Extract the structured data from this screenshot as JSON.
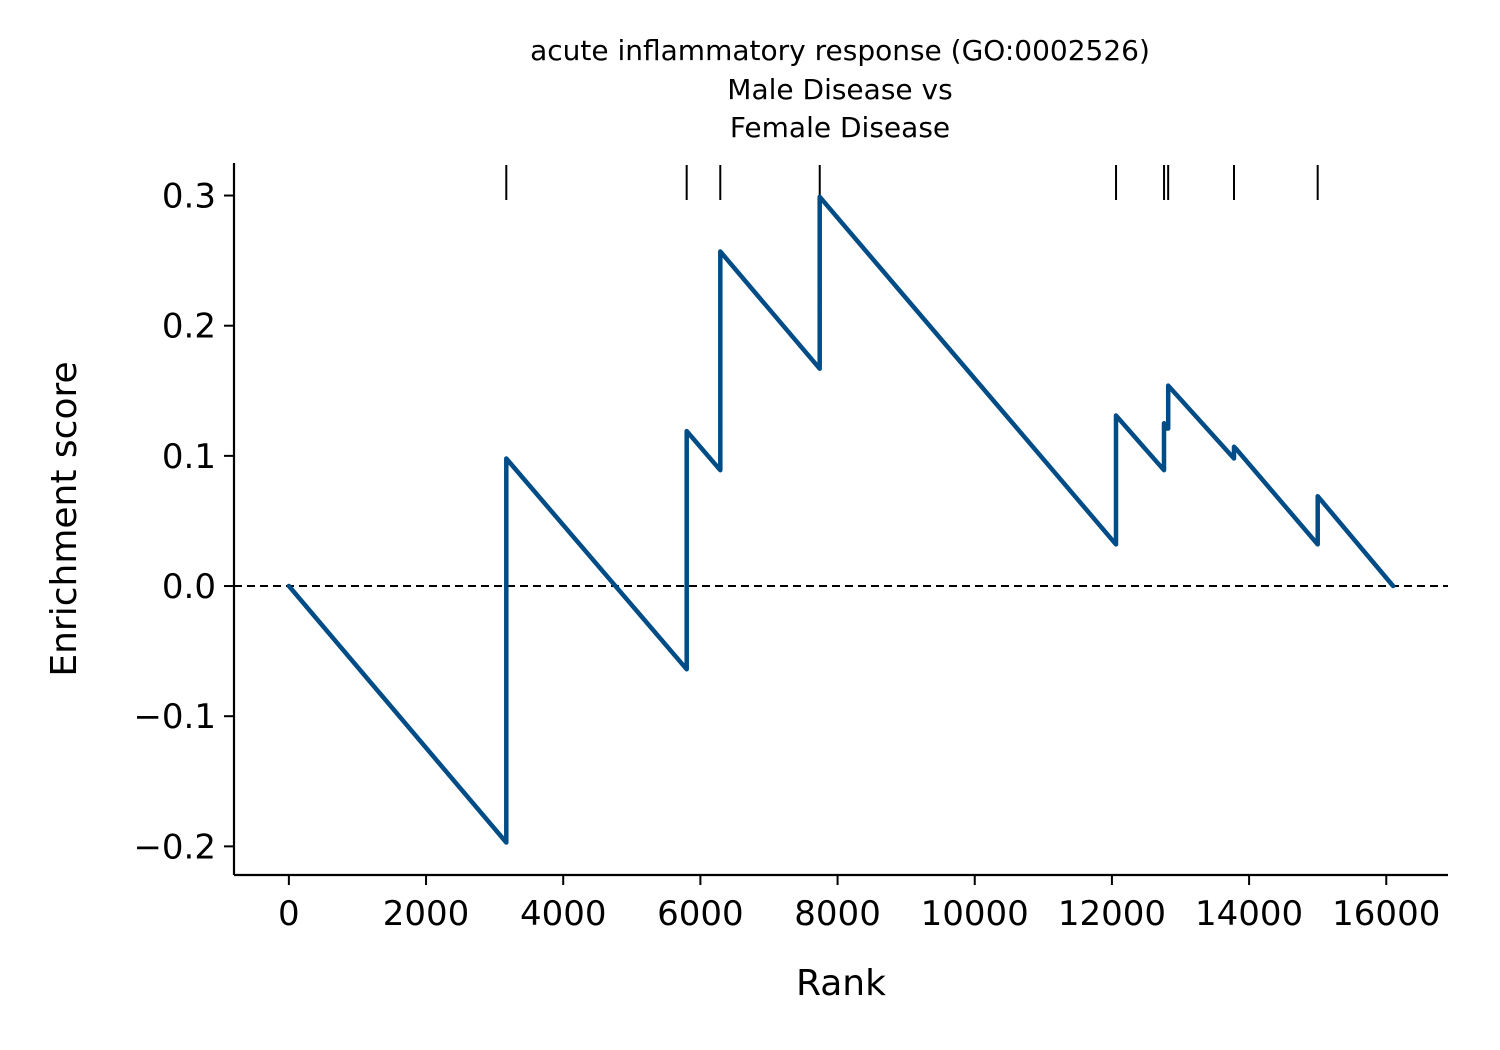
{
  "chart_data": {
    "type": "line",
    "title_lines": [
      "acute inflammatory response (GO:0002526)",
      "Male Disease vs",
      "Female Disease"
    ],
    "xlabel": "Rank",
    "ylabel": "Enrichment score",
    "xlim": [
      -800,
      16900
    ],
    "ylim": [
      -0.222,
      0.325
    ],
    "xticks": [
      0,
      2000,
      4000,
      6000,
      8000,
      10000,
      12000,
      14000,
      16000
    ],
    "yticks": [
      -0.2,
      -0.1,
      0.0,
      0.1,
      0.2,
      0.3
    ],
    "xtick_labels": [
      "0",
      "2000",
      "4000",
      "6000",
      "8000",
      "10000",
      "12000",
      "14000",
      "16000"
    ],
    "ytick_labels": [
      "−0.2",
      "−0.1",
      "0.0",
      "0.1",
      "0.2",
      "0.3"
    ],
    "zero_line": 0.0,
    "line_color": "#004c86",
    "hit_ranks": [
      3170,
      5800,
      6290,
      7740,
      12060,
      12760,
      12820,
      13780,
      15000
    ],
    "series": [
      {
        "x": [
          0,
          3170,
          3170,
          5800,
          5800,
          6290,
          6290,
          7740,
          7740,
          12060,
          12060,
          12760,
          12760,
          12790,
          12820,
          12820,
          13780,
          13780,
          13800,
          15000,
          15000,
          16100
        ],
        "y": [
          0.0,
          -0.197,
          0.098,
          -0.064,
          0.119,
          0.089,
          0.257,
          0.167,
          0.299,
          0.032,
          0.131,
          0.089,
          0.125,
          0.121,
          0.121,
          0.154,
          0.098,
          0.107,
          0.106,
          0.032,
          0.069,
          0.0
        ]
      }
    ]
  }
}
